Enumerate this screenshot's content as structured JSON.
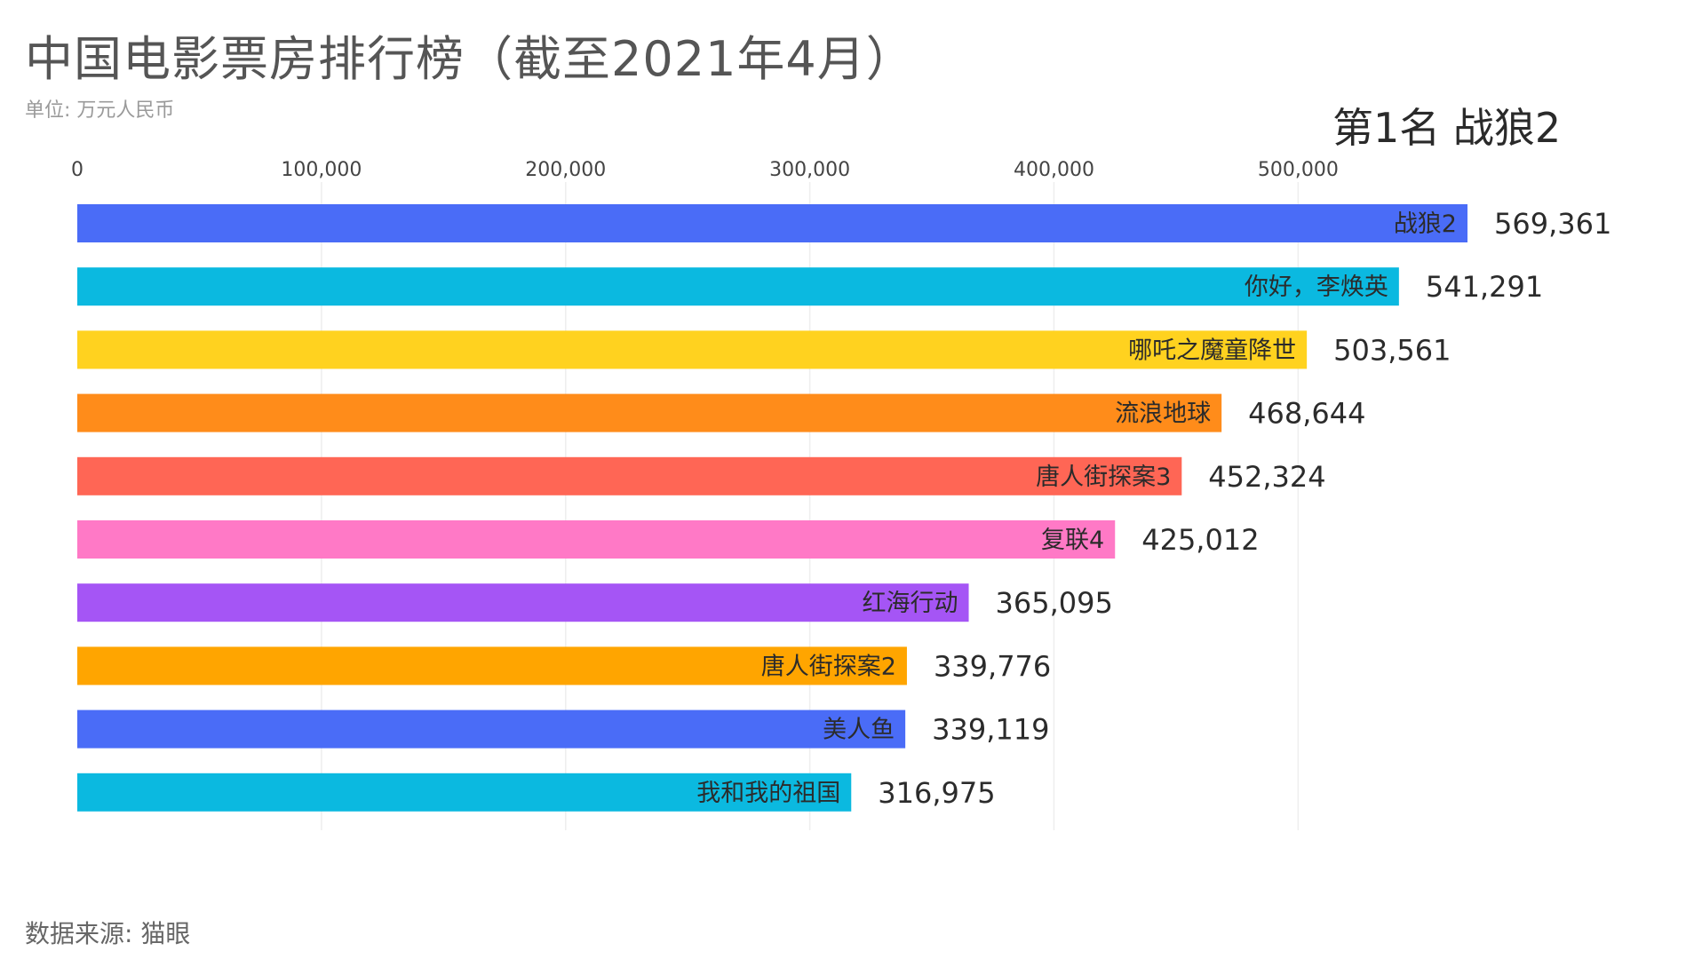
{
  "title": "中国电影票房排行榜（截至2021年4月）",
  "unit": "单位: 万元人民币",
  "rank_text": "第1名 战狼2",
  "source": "数据来源: 猫眼",
  "chart_data": {
    "type": "bar",
    "orientation": "horizontal",
    "categories": [
      "战狼2",
      "你好，李焕英",
      "哪吒之魔童降世",
      "流浪地球",
      "唐人街探案3",
      "复联4",
      "红海行动",
      "唐人街探案2",
      "美人鱼",
      "我和我的祖国"
    ],
    "values": [
      569361,
      541291,
      503561,
      468644,
      452324,
      425012,
      365095,
      339776,
      339119,
      316975
    ],
    "value_labels": [
      "569,361",
      "541,291",
      "503,561",
      "468,644",
      "452,324",
      "425,012",
      "365,095",
      "339,776",
      "339,119",
      "316,975"
    ],
    "colors": [
      "#4a6cf7",
      "#0bb9e0",
      "#ffd21f",
      "#ff8c1a",
      "#ff6655",
      "#ff79c6",
      "#a555f5",
      "#ffa500",
      "#4a6cf7",
      "#0bb9e0"
    ],
    "ticks": [
      0,
      100000,
      200000,
      300000,
      400000,
      500000
    ],
    "tick_labels": [
      "0",
      "100,000",
      "200,000",
      "300,000",
      "400,000",
      "500,000"
    ],
    "xlim": [
      0,
      569361
    ],
    "grid": true,
    "legend": "none"
  }
}
